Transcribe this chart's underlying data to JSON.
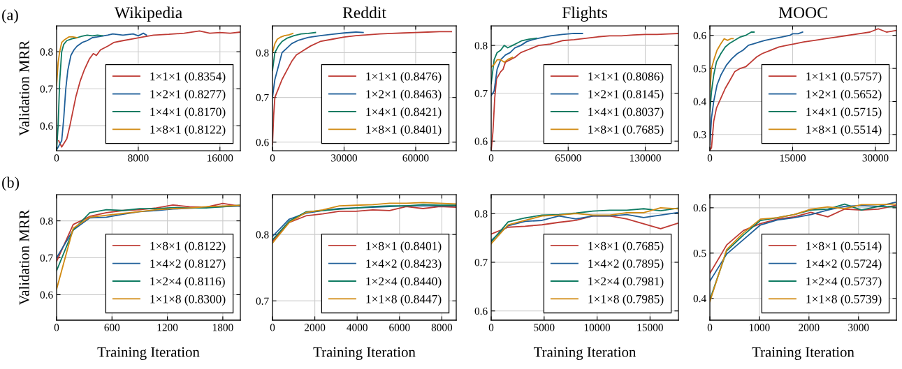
{
  "chart_data": [
    {
      "type": "line",
      "title": "Wikipedia",
      "ylabel": "Validation MRR",
      "annotations": [
        "(a)"
      ],
      "legend": "bottom right",
      "grid": true,
      "xlim": [
        0,
        18000
      ],
      "xticks": [
        0,
        8000,
        16000
      ],
      "ylim": [
        0.533,
        0.87
      ],
      "yticks": [
        0.6,
        0.7,
        0.8
      ],
      "series": [
        {
          "name": "1×1×1 (0.8354)",
          "color": "#be3a34",
          "x": [
            200,
            500,
            1000,
            1300,
            1600,
            1900,
            2300,
            2700,
            3200,
            3600,
            3900,
            4300,
            5000,
            5600,
            6500,
            7500,
            8500,
            9500,
            11000,
            12500,
            14000,
            15000,
            16000,
            17000,
            18000
          ],
          "values": [
            0.56,
            0.543,
            0.565,
            0.6,
            0.64,
            0.68,
            0.72,
            0.75,
            0.78,
            0.795,
            0.79,
            0.805,
            0.815,
            0.825,
            0.83,
            0.835,
            0.84,
            0.845,
            0.847,
            0.85,
            0.856,
            0.85,
            0.852,
            0.85,
            0.853
          ]
        },
        {
          "name": "1×2×1 (0.8277)",
          "color": "#1f5f99",
          "x": [
            0,
            200,
            500,
            700,
            900,
            1100,
            1400,
            1700,
            2000,
            2500,
            3000,
            3500,
            4000,
            5000,
            5500,
            6500,
            7500,
            8000,
            8500,
            8800
          ],
          "values": [
            0.535,
            0.545,
            0.56,
            0.62,
            0.7,
            0.75,
            0.79,
            0.805,
            0.815,
            0.825,
            0.83,
            0.838,
            0.84,
            0.845,
            0.848,
            0.845,
            0.848,
            0.843,
            0.85,
            0.845
          ]
        },
        {
          "name": "1×4×1 (0.8170)",
          "color": "#0f7b62",
          "x": [
            0,
            150,
            300,
            500,
            700,
            1000,
            1500,
            2000,
            2500,
            3000,
            3500,
            4000,
            4500
          ],
          "values": [
            0.535,
            0.6,
            0.72,
            0.8,
            0.82,
            0.83,
            0.835,
            0.838,
            0.842,
            0.845,
            0.843,
            0.845,
            0.843
          ]
        },
        {
          "name": "1×8×1 (0.8122)",
          "color": "#d18a12",
          "x": [
            0,
            150,
            300,
            500,
            800,
            1200,
            1600,
            2000
          ],
          "values": [
            0.71,
            0.77,
            0.8,
            0.825,
            0.833,
            0.84,
            0.84,
            0.838
          ]
        }
      ]
    },
    {
      "type": "line",
      "title": "Reddit",
      "legend": "bottom right",
      "grid": true,
      "xlim": [
        0,
        77000
      ],
      "xticks": [
        0,
        30000,
        60000
      ],
      "ylim": [
        0.581,
        0.86
      ],
      "yticks": [
        0.6,
        0.7,
        0.8
      ],
      "series": [
        {
          "name": "1×1×1 (0.8476)",
          "color": "#be3a34",
          "x": [
            0,
            500,
            1000,
            2500,
            4000,
            6000,
            8000,
            10000,
            13000,
            16000,
            20000,
            25000,
            30000,
            35000,
            40000,
            45000,
            50000,
            55000,
            60000,
            65000,
            70000,
            75000
          ],
          "values": [
            0.595,
            0.66,
            0.7,
            0.72,
            0.74,
            0.76,
            0.78,
            0.795,
            0.805,
            0.815,
            0.825,
            0.83,
            0.835,
            0.838,
            0.84,
            0.842,
            0.843,
            0.844,
            0.845,
            0.846,
            0.847,
            0.847
          ]
        },
        {
          "name": "1×2×1 (0.8463)",
          "color": "#1f5f99",
          "x": [
            0,
            1000,
            2500,
            4000,
            6000,
            8000,
            11000,
            15000,
            20000,
            25000,
            30000,
            35000,
            38000
          ],
          "values": [
            0.7,
            0.74,
            0.77,
            0.8,
            0.81,
            0.82,
            0.828,
            0.834,
            0.838,
            0.841,
            0.844,
            0.846,
            0.845
          ]
        },
        {
          "name": "1×4×1 (0.8421)",
          "color": "#0f7b62",
          "x": [
            0,
            1000,
            2500,
            4000,
            6000,
            9000,
            12000,
            15000,
            18000
          ],
          "values": [
            0.76,
            0.8,
            0.815,
            0.825,
            0.832,
            0.838,
            0.842,
            0.843,
            0.845
          ]
        },
        {
          "name": "1×8×1 (0.8401)",
          "color": "#d18a12",
          "x": [
            0,
            1000,
            2000,
            3500,
            5000,
            7000,
            8500
          ],
          "values": [
            0.8,
            0.82,
            0.83,
            0.835,
            0.838,
            0.84,
            0.843
          ]
        }
      ]
    },
    {
      "type": "line",
      "title": "Flights",
      "legend": "bottom right",
      "grid": true,
      "xlim": [
        0,
        158000
      ],
      "xticks": [
        0,
        65000,
        130000
      ],
      "ylim": [
        0.58,
        0.841
      ],
      "yticks": [
        0.6,
        0.7,
        0.8
      ],
      "series": [
        {
          "name": "1×1×1 (0.8086)",
          "color": "#be3a34",
          "x": [
            0,
            1500,
            3000,
            4500,
            8000,
            10000,
            12000,
            16000,
            20000,
            25000,
            30000,
            35000,
            40000,
            50000,
            60000,
            70000,
            80000,
            90000,
            100000,
            110000,
            120000,
            130000,
            140000,
            150000,
            158000
          ],
          "values": [
            0.58,
            0.62,
            0.69,
            0.73,
            0.745,
            0.75,
            0.765,
            0.77,
            0.775,
            0.785,
            0.79,
            0.795,
            0.8,
            0.803,
            0.81,
            0.812,
            0.815,
            0.818,
            0.82,
            0.82,
            0.822,
            0.823,
            0.823,
            0.824,
            0.825
          ]
        },
        {
          "name": "1×2×1 (0.8145)",
          "color": "#1f5f99",
          "x": [
            0,
            2500,
            5000,
            8000,
            12000,
            16000,
            20000,
            25000,
            30000,
            35000,
            40000,
            50000,
            60000,
            70000,
            77000
          ],
          "values": [
            0.695,
            0.705,
            0.75,
            0.77,
            0.78,
            0.785,
            0.795,
            0.8,
            0.808,
            0.812,
            0.815,
            0.82,
            0.823,
            0.825,
            0.825
          ]
        },
        {
          "name": "1×4×1 (0.8037)",
          "color": "#0f7b62",
          "x": [
            0,
            2500,
            5000,
            8000,
            11000,
            14000,
            18000,
            22000,
            26000,
            32000,
            38000
          ],
          "values": [
            0.72,
            0.77,
            0.785,
            0.79,
            0.8,
            0.795,
            0.8,
            0.805,
            0.81,
            0.813,
            0.815
          ]
        },
        {
          "name": "1×8×1 (0.7685)",
          "color": "#d18a12",
          "x": [
            0,
            2500,
            5000,
            8000,
            11000,
            15000,
            18000
          ],
          "values": [
            0.755,
            0.76,
            0.77,
            0.77,
            0.765,
            0.772,
            0.775
          ]
        }
      ]
    },
    {
      "type": "line",
      "title": "MOOC",
      "legend": "bottom right",
      "grid": true,
      "xlim": [
        0,
        33800
      ],
      "xticks": [
        0,
        15000,
        30000
      ],
      "ylim": [
        0.251,
        0.629
      ],
      "yticks": [
        0.3,
        0.4,
        0.5,
        0.6
      ],
      "series": [
        {
          "name": "1×1×1 (0.5757)",
          "color": "#be3a34",
          "x": [
            0,
            300,
            700,
            1200,
            2000,
            2800,
            3500,
            4500,
            5500,
            6500,
            7500,
            8500,
            9500,
            11000,
            12500,
            14000,
            15500,
            17000,
            19000,
            21000,
            23000,
            25000,
            27000,
            29000,
            30500,
            32000,
            33800
          ],
          "values": [
            0.252,
            0.26,
            0.34,
            0.38,
            0.41,
            0.44,
            0.46,
            0.49,
            0.5,
            0.505,
            0.52,
            0.535,
            0.545,
            0.555,
            0.565,
            0.57,
            0.575,
            0.58,
            0.585,
            0.59,
            0.595,
            0.6,
            0.605,
            0.61,
            0.62,
            0.61,
            0.615
          ]
        },
        {
          "name": "1×2×1 (0.5652)",
          "color": "#1f5f99",
          "x": [
            0,
            300,
            700,
            1300,
            2000,
            3000,
            4000,
            5000,
            6000,
            7000,
            8000,
            9000,
            10000,
            11500,
            13000,
            14500,
            15000,
            16000,
            16800
          ],
          "values": [
            0.27,
            0.35,
            0.4,
            0.45,
            0.48,
            0.51,
            0.53,
            0.545,
            0.555,
            0.57,
            0.575,
            0.58,
            0.585,
            0.59,
            0.595,
            0.6,
            0.605,
            0.605,
            0.61
          ]
        },
        {
          "name": "1×4×1 (0.5715)",
          "color": "#0f7b62",
          "x": [
            0,
            300,
            700,
            1200,
            2000,
            2800,
            3500,
            4500,
            5500,
            6500,
            7500,
            8000
          ],
          "values": [
            0.37,
            0.43,
            0.48,
            0.52,
            0.545,
            0.565,
            0.575,
            0.585,
            0.595,
            0.6,
            0.61,
            0.61
          ]
        },
        {
          "name": "1×8×1 (0.5514)",
          "color": "#d18a12",
          "x": [
            0,
            300,
            800,
            1300,
            2000,
            2600,
            3200,
            3800,
            4200
          ],
          "values": [
            0.43,
            0.5,
            0.53,
            0.555,
            0.575,
            0.59,
            0.585,
            0.59,
            0.59
          ]
        }
      ]
    },
    {
      "type": "line",
      "xlabel": "Training Iteration",
      "ylabel": "Validation MRR",
      "annotations": [
        "(b)"
      ],
      "legend": "bottom right",
      "grid": true,
      "xlim": [
        0,
        1990
      ],
      "xticks": [
        0,
        600,
        1200,
        1800
      ],
      "ylim": [
        0.531,
        0.871
      ],
      "yticks": [
        0.6,
        0.7,
        0.8
      ],
      "series": [
        {
          "name": "1×8×1 (0.8122)",
          "color": "#be3a34",
          "x": [
            0,
            180,
            360,
            540,
            720,
            900,
            1080,
            1260,
            1440,
            1620,
            1800,
            1980
          ],
          "values": [
            0.69,
            0.79,
            0.812,
            0.822,
            0.828,
            0.83,
            0.835,
            0.843,
            0.838,
            0.837,
            0.847,
            0.84
          ]
        },
        {
          "name": "1×4×2 (0.8127)",
          "color": "#1f5f99",
          "x": [
            0,
            180,
            360,
            540,
            720,
            900,
            1080,
            1260,
            1440,
            1620,
            1800,
            1980
          ],
          "values": [
            0.7,
            0.775,
            0.808,
            0.81,
            0.818,
            0.825,
            0.828,
            0.832,
            0.834,
            0.837,
            0.838,
            0.84
          ]
        },
        {
          "name": "1×2×4 (0.8116)",
          "color": "#0f7b62",
          "x": [
            0,
            180,
            360,
            540,
            720,
            900,
            1080,
            1260,
            1440,
            1620,
            1800,
            1980
          ],
          "values": [
            0.665,
            0.775,
            0.822,
            0.83,
            0.828,
            0.833,
            0.833,
            0.836,
            0.835,
            0.835,
            0.838,
            0.842
          ]
        },
        {
          "name": "1×1×8 (0.8300)",
          "color": "#d18a12",
          "x": [
            0,
            180,
            360,
            540,
            720,
            900,
            1080,
            1260,
            1440,
            1620,
            1800,
            1980
          ],
          "values": [
            0.615,
            0.78,
            0.81,
            0.815,
            0.82,
            0.825,
            0.83,
            0.833,
            0.835,
            0.838,
            0.84,
            0.842
          ]
        }
      ]
    },
    {
      "type": "line",
      "xlabel": "Training Iteration",
      "legend": "bottom right",
      "grid": true,
      "xlim": [
        0,
        8680
      ],
      "xticks": [
        0,
        2000,
        4000,
        6000,
        8000
      ],
      "ylim": [
        0.671,
        0.86
      ],
      "yticks": [
        0.7,
        0.8
      ],
      "series": [
        {
          "name": "1×8×1 (0.8401)",
          "color": "#be3a34",
          "x": [
            0,
            790,
            1580,
            2370,
            3160,
            3950,
            4740,
            5530,
            6320,
            7110,
            7900,
            8680
          ],
          "values": [
            0.79,
            0.818,
            0.828,
            0.831,
            0.835,
            0.835,
            0.837,
            0.836,
            0.842,
            0.839,
            0.842,
            0.841
          ]
        },
        {
          "name": "1×4×2 (0.8423)",
          "color": "#1f5f99",
          "x": [
            0,
            790,
            1580,
            2370,
            3160,
            3950,
            4740,
            5530,
            6320,
            7110,
            7900,
            8680
          ],
          "values": [
            0.797,
            0.823,
            0.832,
            0.836,
            0.839,
            0.84,
            0.841,
            0.842,
            0.843,
            0.843,
            0.843,
            0.843
          ]
        },
        {
          "name": "1×2×4 (0.8440)",
          "color": "#0f7b62",
          "x": [
            0,
            790,
            1580,
            2370,
            3160,
            3950,
            4740,
            5530,
            6320,
            7110,
            7900,
            8680
          ],
          "values": [
            0.792,
            0.82,
            0.834,
            0.836,
            0.838,
            0.84,
            0.842,
            0.843,
            0.843,
            0.845,
            0.844,
            0.844
          ]
        },
        {
          "name": "1×1×8 (0.8447)",
          "color": "#d18a12",
          "x": [
            0,
            790,
            1580,
            2370,
            3160,
            3950,
            4740,
            5530,
            6320,
            7110,
            7900,
            8680
          ],
          "values": [
            0.787,
            0.818,
            0.833,
            0.837,
            0.843,
            0.844,
            0.845,
            0.847,
            0.847,
            0.848,
            0.847,
            0.846
          ]
        }
      ]
    },
    {
      "type": "line",
      "xlabel": "Training Iteration",
      "legend": "bottom right",
      "grid": true,
      "xlim": [
        0,
        17680
      ],
      "xticks": [
        0,
        5000,
        10000,
        15000
      ],
      "ylim": [
        0.581,
        0.839
      ],
      "yticks": [
        0.6,
        0.7,
        0.8
      ],
      "series": [
        {
          "name": "1×8×1 (0.7685)",
          "color": "#be3a34",
          "x": [
            0,
            1600,
            3200,
            4800,
            6400,
            8000,
            9600,
            11200,
            12800,
            14400,
            16000,
            17600
          ],
          "values": [
            0.758,
            0.772,
            0.774,
            0.777,
            0.782,
            0.786,
            0.795,
            0.795,
            0.789,
            0.779,
            0.769,
            0.78
          ]
        },
        {
          "name": "1×4×2 (0.7895)",
          "color": "#1f5f99",
          "x": [
            0,
            1600,
            3200,
            4800,
            6400,
            8000,
            9600,
            11200,
            12800,
            14400,
            16000,
            17600
          ],
          "values": [
            0.745,
            0.775,
            0.784,
            0.786,
            0.795,
            0.789,
            0.795,
            0.795,
            0.798,
            0.792,
            0.797,
            0.802
          ]
        },
        {
          "name": "1×2×4 (0.7981)",
          "color": "#0f7b62",
          "x": [
            0,
            1600,
            3200,
            4800,
            6400,
            8000,
            9600,
            11200,
            12800,
            14400,
            16000,
            17600
          ],
          "values": [
            0.742,
            0.783,
            0.791,
            0.797,
            0.798,
            0.801,
            0.805,
            0.807,
            0.807,
            0.81,
            0.806,
            0.811
          ]
        },
        {
          "name": "1×1×8 (0.7985)",
          "color": "#d18a12",
          "x": [
            0,
            1600,
            3200,
            4800,
            6400,
            8000,
            9600,
            11200,
            12800,
            14400,
            16000,
            17600
          ],
          "values": [
            0.738,
            0.777,
            0.786,
            0.795,
            0.797,
            0.8,
            0.797,
            0.797,
            0.802,
            0.802,
            0.812,
            0.81
          ]
        }
      ]
    },
    {
      "type": "line",
      "xlabel": "Training Iteration",
      "legend": "bottom right",
      "grid": true,
      "xlim": [
        0,
        3765
      ],
      "xticks": [
        0,
        1000,
        2000,
        3000
      ],
      "ylim": [
        0.352,
        0.629
      ],
      "yticks": [
        0.4,
        0.5,
        0.6
      ],
      "series": [
        {
          "name": "1×8×1 (0.5514)",
          "color": "#be3a34",
          "x": [
            0,
            340,
            680,
            1020,
            1360,
            1700,
            2040,
            2380,
            2720,
            3060,
            3400,
            3740
          ],
          "values": [
            0.455,
            0.518,
            0.55,
            0.565,
            0.575,
            0.58,
            0.59,
            0.58,
            0.597,
            0.595,
            0.597,
            0.605
          ]
        },
        {
          "name": "1×4×2 (0.5724)",
          "color": "#1f5f99",
          "x": [
            0,
            340,
            680,
            1020,
            1360,
            1700,
            2040,
            2380,
            2720,
            3060,
            3400,
            3740
          ],
          "values": [
            0.438,
            0.498,
            0.53,
            0.562,
            0.573,
            0.578,
            0.585,
            0.595,
            0.603,
            0.605,
            0.603,
            0.612
          ]
        },
        {
          "name": "1×2×4 (0.5737)",
          "color": "#0f7b62",
          "x": [
            0,
            340,
            680,
            1020,
            1360,
            1700,
            2040,
            2380,
            2720,
            3060,
            3400,
            3740
          ],
          "values": [
            0.397,
            0.505,
            0.54,
            0.572,
            0.578,
            0.585,
            0.595,
            0.597,
            0.608,
            0.595,
            0.603,
            0.602
          ]
        },
        {
          "name": "1×1×8 (0.5739)",
          "color": "#d18a12",
          "x": [
            0,
            340,
            680,
            1020,
            1360,
            1700,
            2040,
            2380,
            2720,
            3060,
            3400,
            3740
          ],
          "values": [
            0.393,
            0.508,
            0.545,
            0.575,
            0.578,
            0.585,
            0.597,
            0.602,
            0.598,
            0.607,
            0.607,
            0.608
          ]
        }
      ]
    }
  ]
}
